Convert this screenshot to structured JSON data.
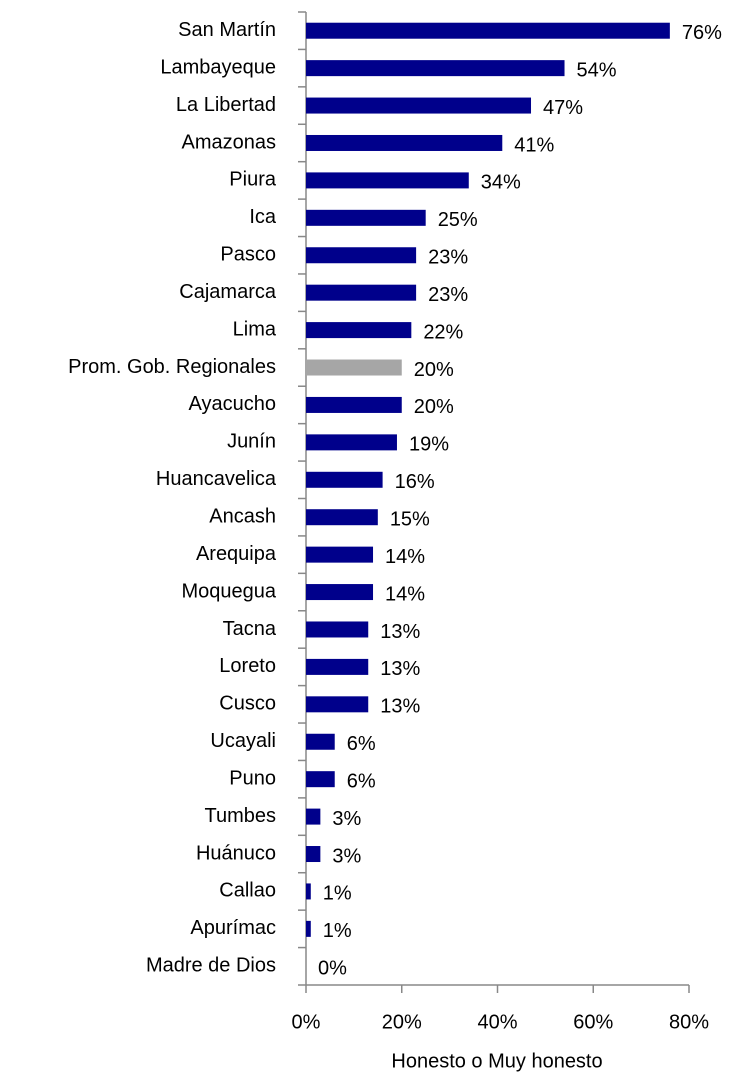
{
  "chart_data": {
    "type": "barh",
    "categories": [
      "San Martín",
      "Lambayeque",
      "La Libertad",
      "Amazonas",
      "Piura",
      "Ica",
      "Pasco",
      "Cajamarca",
      "Lima",
      "Prom. Gob. Regionales",
      "Ayacucho",
      "Junín",
      "Huancavelica",
      "Ancash",
      "Arequipa",
      "Moquegua",
      "Tacna",
      "Loreto",
      "Cusco",
      "Ucayali",
      "Puno",
      "Tumbes",
      "Huánuco",
      "Callao",
      "Apurímac",
      "Madre de Dios"
    ],
    "values": [
      76,
      54,
      47,
      41,
      34,
      25,
      23,
      23,
      22,
      20,
      20,
      19,
      16,
      15,
      14,
      14,
      13,
      13,
      13,
      6,
      6,
      3,
      3,
      1,
      1,
      0
    ],
    "value_labels": [
      "76%",
      "54%",
      "47%",
      "41%",
      "34%",
      "25%",
      "23%",
      "23%",
      "22%",
      "20%",
      "20%",
      "19%",
      "16%",
      "15%",
      "14%",
      "14%",
      "13%",
      "13%",
      "13%",
      "6%",
      "6%",
      "3%",
      "3%",
      "1%",
      "1%",
      "0%"
    ],
    "colors": [
      "#00008b",
      "#00008b",
      "#00008b",
      "#00008b",
      "#00008b",
      "#00008b",
      "#00008b",
      "#00008b",
      "#00008b",
      "#a6a6a6",
      "#00008b",
      "#00008b",
      "#00008b",
      "#00008b",
      "#00008b",
      "#00008b",
      "#00008b",
      "#00008b",
      "#00008b",
      "#00008b",
      "#00008b",
      "#00008b",
      "#00008b",
      "#00008b",
      "#00008b",
      "#00008b"
    ],
    "xlabel": "Honesto o Muy honesto",
    "xlim": [
      0,
      80
    ],
    "xticks": [
      {
        "value": 0,
        "label": "0%"
      },
      {
        "value": 20,
        "label": "20%"
      },
      {
        "value": 40,
        "label": "40%"
      },
      {
        "value": 60,
        "label": "60%"
      },
      {
        "value": 80,
        "label": "80%"
      }
    ],
    "grid": false
  }
}
